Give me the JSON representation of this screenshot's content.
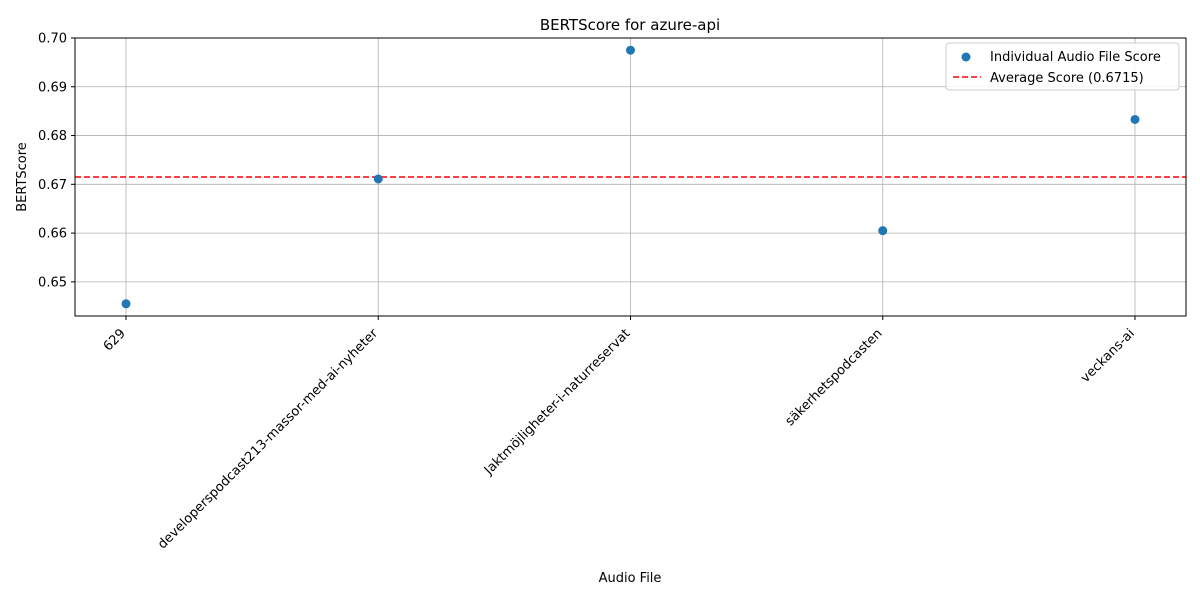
{
  "chart_data": {
    "type": "scatter",
    "title": "BERTScore for azure-api",
    "xlabel": "Audio File",
    "ylabel": "BERTScore",
    "categories": [
      "629",
      "developerspodcast213-massor-med-ai-nyheter",
      "Jaktmöjligheter-i-naturreservat",
      "säkerhetspodcasten",
      "veckans-ai"
    ],
    "series": [
      {
        "name": "Individual Audio File Score",
        "values": [
          0.6455,
          0.6711,
          0.6975,
          0.6605,
          0.6833
        ],
        "color": "#1f77b4"
      }
    ],
    "average": {
      "name": "Average Score (0.6715)",
      "value": 0.6715,
      "color": "#ff0000",
      "style": "dashed"
    },
    "ylim": [
      0.643,
      0.7
    ],
    "yticks": [
      "0.65",
      "0.66",
      "0.67",
      "0.68",
      "0.69",
      "0.70"
    ],
    "grid": true,
    "legend_position": "top-right"
  }
}
